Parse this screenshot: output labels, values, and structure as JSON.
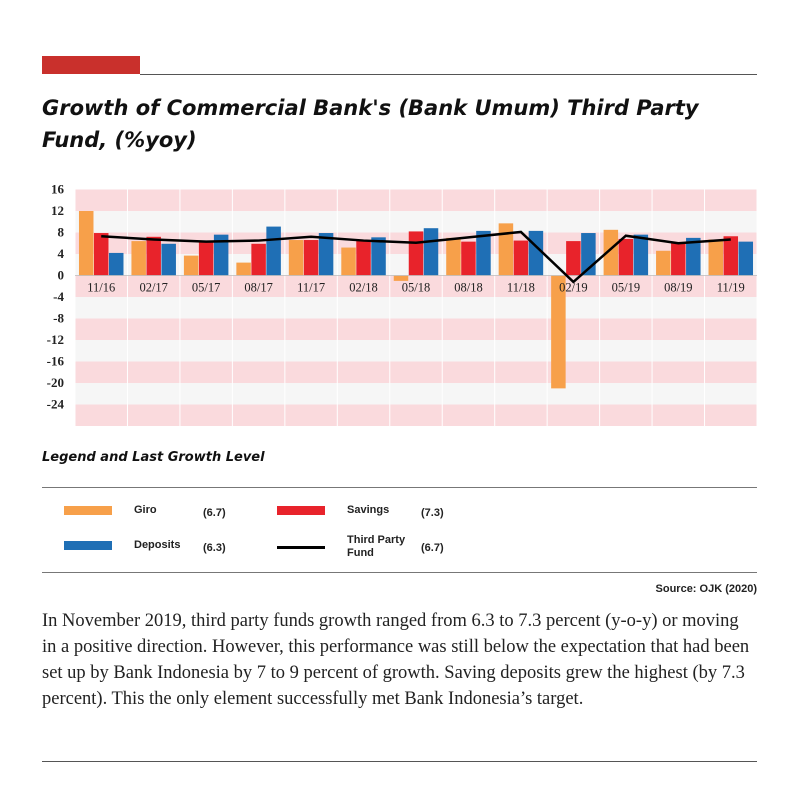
{
  "header": {
    "title": "Growth of Commercial Bank's (Bank Umum) Third Party Fund, (%yoy)",
    "accent_color": "#c9302c"
  },
  "chart_data": {
    "type": "bar",
    "title": "Growth of Commercial Bank's (Bank Umum) Third Party Fund, (%yoy)",
    "categories": [
      "11/16",
      "02/17",
      "05/17",
      "08/17",
      "11/17",
      "02/18",
      "05/18",
      "08/18",
      "11/18",
      "02/19",
      "05/19",
      "08/19",
      "11/19"
    ],
    "y_ticks": [
      16,
      12,
      8,
      4,
      0,
      -4,
      -8,
      -12,
      -16,
      -20,
      -24
    ],
    "ylim": [
      -28,
      16
    ],
    "grid": true,
    "band_colors": [
      "#fadadd",
      "#f6f6f6"
    ],
    "series": [
      {
        "name": "Giro",
        "type": "bar",
        "color": "#f7a04a",
        "values": [
          12.0,
          6.4,
          3.7,
          2.4,
          6.6,
          5.2,
          -1.0,
          7.0,
          9.7,
          -21.0,
          8.5,
          4.6,
          6.7
        ]
      },
      {
        "name": "Savings",
        "type": "bar",
        "color": "#e8232b",
        "values": [
          7.9,
          7.2,
          6.3,
          5.9,
          6.6,
          6.6,
          8.2,
          6.3,
          6.5,
          6.4,
          6.8,
          6.2,
          7.3
        ]
      },
      {
        "name": "Deposits",
        "type": "bar",
        "color": "#1f6fb5",
        "values": [
          4.2,
          5.9,
          7.6,
          9.1,
          7.9,
          7.1,
          8.8,
          8.3,
          8.3,
          7.9,
          7.6,
          7.0,
          6.3
        ]
      },
      {
        "name": "Third Party Fund",
        "type": "line",
        "color": "#000000",
        "values": [
          7.3,
          6.7,
          6.3,
          6.5,
          7.2,
          6.5,
          6.1,
          7.1,
          8.1,
          -1.2,
          7.4,
          6.0,
          6.7
        ]
      }
    ]
  },
  "legend": {
    "title": "Legend and Last Growth Level",
    "items": [
      {
        "label": "Giro",
        "value": "(6.7)",
        "color": "#f7a04a"
      },
      {
        "label": "Savings",
        "value": "(7.3)",
        "color": "#e8232b"
      },
      {
        "label": "Deposits",
        "value": "(6.3)",
        "color": "#1f6fb5"
      },
      {
        "label": "Third Party Fund",
        "value": "(6.7)",
        "color": "#000000"
      }
    ]
  },
  "source": "Source: OJK (2020)",
  "paragraph": "In November 2019, third party funds growth ranged from 6.3 to 7.3 percent (y-o-y) or moving in a positive direction. However, this performance was still below the expectation that had been set up by Bank Indonesia by 7 to 9 percent of growth. Saving deposits grew the highest (by 7.3 percent). This the only element successfully met Bank Indonesia’s target."
}
